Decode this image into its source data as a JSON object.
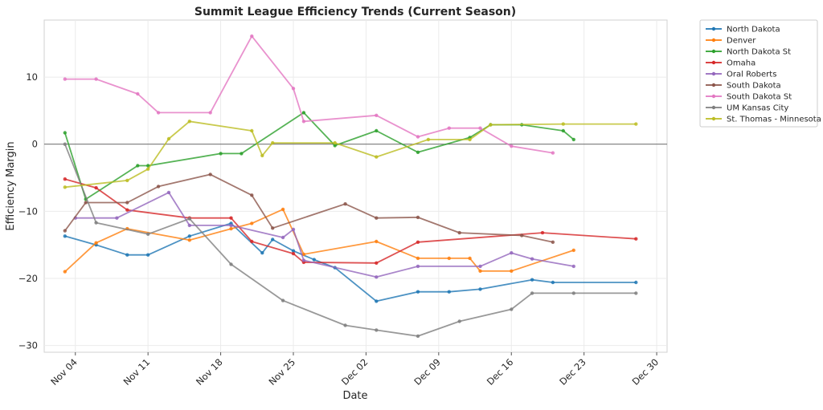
{
  "chart_data": {
    "type": "line",
    "title": "Summit League Efficiency Trends (Current Season)",
    "xlabel": "Date",
    "ylabel": "Efficiency Margin",
    "x_ticks": [
      "Nov 04",
      "Nov 11",
      "Nov 18",
      "Nov 25",
      "Dec 02",
      "Dec 09",
      "Dec 16",
      "Dec 23",
      "Dec 30"
    ],
    "y_ticks": [
      -30,
      -20,
      -10,
      0,
      10
    ],
    "xlim": [
      "2024-11-01",
      "2024-12-31"
    ],
    "ylim": [
      -31,
      18.5
    ],
    "grid": true,
    "zero_line": true,
    "legend_position": "outside-top-right",
    "series": [
      {
        "name": "North Dakota",
        "color": "#1f77b4",
        "points": [
          [
            "2024-11-03",
            -13.7
          ],
          [
            "2024-11-06",
            -15.0
          ],
          [
            "2024-11-09",
            -16.5
          ],
          [
            "2024-11-11",
            -16.5
          ],
          [
            "2024-11-15",
            -13.7
          ],
          [
            "2024-11-19",
            -11.8
          ],
          [
            "2024-11-22",
            -16.2
          ],
          [
            "2024-11-23",
            -14.2
          ],
          [
            "2024-11-25",
            -15.9
          ],
          [
            "2024-11-27",
            -17.2
          ],
          [
            "2024-11-29",
            -18.4
          ],
          [
            "2024-12-03",
            -23.4
          ],
          [
            "2024-12-07",
            -22.0
          ],
          [
            "2024-12-10",
            -22.0
          ],
          [
            "2024-12-13",
            -21.6
          ],
          [
            "2024-12-18",
            -20.2
          ],
          [
            "2024-12-20",
            -20.6
          ],
          [
            "2024-12-28",
            -20.6
          ]
        ]
      },
      {
        "name": "Denver",
        "color": "#ff7f0e",
        "points": [
          [
            "2024-11-03",
            -19.0
          ],
          [
            "2024-11-06",
            -14.7
          ],
          [
            "2024-11-09",
            -12.6
          ],
          [
            "2024-11-15",
            -14.3
          ],
          [
            "2024-11-19",
            -12.6
          ],
          [
            "2024-11-21",
            -11.8
          ],
          [
            "2024-11-24",
            -9.7
          ],
          [
            "2024-11-26",
            -16.4
          ],
          [
            "2024-12-03",
            -14.5
          ],
          [
            "2024-12-07",
            -17.0
          ],
          [
            "2024-12-10",
            -17.0
          ],
          [
            "2024-12-12",
            -17.0
          ],
          [
            "2024-12-13",
            -18.9
          ],
          [
            "2024-12-16",
            -18.9
          ],
          [
            "2024-12-22",
            -15.8
          ]
        ]
      },
      {
        "name": "North Dakota St",
        "color": "#2ca02c",
        "points": [
          [
            "2024-11-03",
            1.7
          ],
          [
            "2024-11-05",
            -8.2
          ],
          [
            "2024-11-10",
            -3.2
          ],
          [
            "2024-11-11",
            -3.2
          ],
          [
            "2024-11-18",
            -1.4
          ],
          [
            "2024-11-20",
            -1.4
          ],
          [
            "2024-11-26",
            4.7
          ],
          [
            "2024-11-29",
            -0.2
          ],
          [
            "2024-12-03",
            2.0
          ],
          [
            "2024-12-07",
            -1.2
          ],
          [
            "2024-12-12",
            1.0
          ],
          [
            "2024-12-14",
            2.9
          ],
          [
            "2024-12-17",
            2.9
          ],
          [
            "2024-12-21",
            2.0
          ],
          [
            "2024-12-22",
            0.7
          ]
        ]
      },
      {
        "name": "Omaha",
        "color": "#d62728",
        "points": [
          [
            "2024-11-03",
            -5.2
          ],
          [
            "2024-11-06",
            -6.5
          ],
          [
            "2024-11-09",
            -9.8
          ],
          [
            "2024-11-15",
            -11.0
          ],
          [
            "2024-11-19",
            -11.0
          ],
          [
            "2024-11-21",
            -14.5
          ],
          [
            "2024-11-25",
            -16.3
          ],
          [
            "2024-11-26",
            -17.6
          ],
          [
            "2024-12-03",
            -17.7
          ],
          [
            "2024-12-07",
            -14.6
          ],
          [
            "2024-12-19",
            -13.2
          ],
          [
            "2024-12-28",
            -14.1
          ]
        ]
      },
      {
        "name": "Oral Roberts",
        "color": "#9467bd",
        "points": [
          [
            "2024-11-04",
            -11.0
          ],
          [
            "2024-11-08",
            -11.0
          ],
          [
            "2024-11-13",
            -7.2
          ],
          [
            "2024-11-15",
            -12.1
          ],
          [
            "2024-11-19",
            -12.1
          ],
          [
            "2024-11-24",
            -13.9
          ],
          [
            "2024-11-25",
            -12.7
          ],
          [
            "2024-11-26",
            -17.3
          ],
          [
            "2024-12-03",
            -19.8
          ],
          [
            "2024-12-07",
            -18.2
          ],
          [
            "2024-12-13",
            -18.2
          ],
          [
            "2024-12-16",
            -16.2
          ],
          [
            "2024-12-18",
            -17.1
          ],
          [
            "2024-12-22",
            -18.2
          ]
        ]
      },
      {
        "name": "South Dakota",
        "color": "#8c564b",
        "points": [
          [
            "2024-11-03",
            -12.9
          ],
          [
            "2024-11-05",
            -8.7
          ],
          [
            "2024-11-09",
            -8.7
          ],
          [
            "2024-11-12",
            -6.3
          ],
          [
            "2024-11-17",
            -4.5
          ],
          [
            "2024-11-21",
            -7.6
          ],
          [
            "2024-11-23",
            -12.5
          ],
          [
            "2024-11-30",
            -8.9
          ],
          [
            "2024-12-03",
            -11.0
          ],
          [
            "2024-12-07",
            -10.9
          ],
          [
            "2024-12-11",
            -13.2
          ],
          [
            "2024-12-17",
            -13.6
          ],
          [
            "2024-12-20",
            -14.6
          ]
        ]
      },
      {
        "name": "South Dakota St",
        "color": "#e377c2",
        "points": [
          [
            "2024-11-03",
            9.7
          ],
          [
            "2024-11-06",
            9.7
          ],
          [
            "2024-11-10",
            7.5
          ],
          [
            "2024-11-12",
            4.7
          ],
          [
            "2024-11-17",
            4.7
          ],
          [
            "2024-11-21",
            16.1
          ],
          [
            "2024-11-25",
            8.3
          ],
          [
            "2024-11-26",
            3.4
          ],
          [
            "2024-12-03",
            4.3
          ],
          [
            "2024-12-07",
            1.1
          ],
          [
            "2024-12-10",
            2.4
          ],
          [
            "2024-12-13",
            2.4
          ],
          [
            "2024-12-16",
            -0.3
          ],
          [
            "2024-12-20",
            -1.3
          ]
        ]
      },
      {
        "name": "UM Kansas City",
        "color": "#7f7f7f",
        "points": [
          [
            "2024-11-03",
            0.0
          ],
          [
            "2024-11-06",
            -11.7
          ],
          [
            "2024-11-11",
            -13.4
          ],
          [
            "2024-11-15",
            -11.1
          ],
          [
            "2024-11-19",
            -17.9
          ],
          [
            "2024-11-24",
            -23.3
          ],
          [
            "2024-11-30",
            -27.0
          ],
          [
            "2024-12-03",
            -27.7
          ],
          [
            "2024-12-07",
            -28.6
          ],
          [
            "2024-12-11",
            -26.4
          ],
          [
            "2024-12-16",
            -24.6
          ],
          [
            "2024-12-18",
            -22.2
          ],
          [
            "2024-12-22",
            -22.2
          ],
          [
            "2024-12-28",
            -22.2
          ]
        ]
      },
      {
        "name": "St. Thomas - Minnesota",
        "color": "#bcbd22",
        "points": [
          [
            "2024-11-03",
            -6.4
          ],
          [
            "2024-11-09",
            -5.4
          ],
          [
            "2024-11-11",
            -3.7
          ],
          [
            "2024-11-13",
            0.8
          ],
          [
            "2024-11-15",
            3.4
          ],
          [
            "2024-11-21",
            2.0
          ],
          [
            "2024-11-22",
            -1.7
          ],
          [
            "2024-11-23",
            0.2
          ],
          [
            "2024-11-29",
            0.2
          ],
          [
            "2024-12-03",
            -1.9
          ],
          [
            "2024-12-08",
            0.7
          ],
          [
            "2024-12-12",
            0.7
          ],
          [
            "2024-12-14",
            2.9
          ],
          [
            "2024-12-21",
            3.0
          ],
          [
            "2024-12-28",
            3.0
          ]
        ]
      }
    ]
  }
}
